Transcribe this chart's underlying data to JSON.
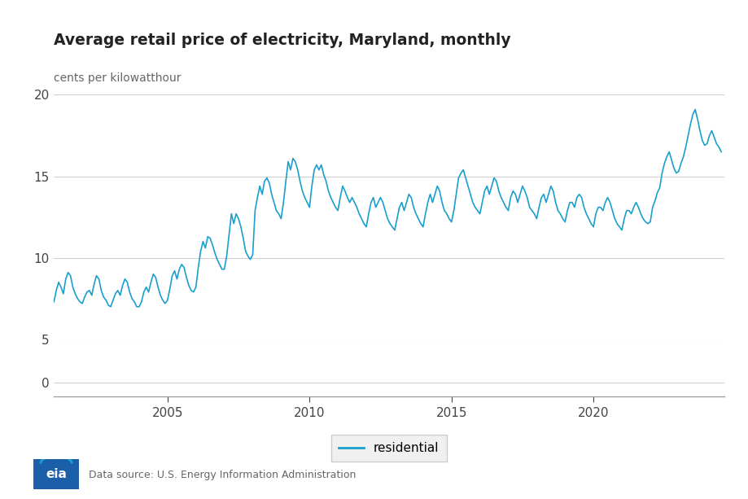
{
  "title": "Average retail price of electricity, Maryland, monthly",
  "ylabel": "cents per kilowatthour",
  "line_color": "#1a9fcd",
  "legend_label": "residential",
  "background_color": "#ffffff",
  "plot_bg_color": "#ffffff",
  "ylim": [
    0,
    20
  ],
  "yticks": [
    0,
    5,
    10,
    15,
    20
  ],
  "x_tick_years": [
    2005,
    2010,
    2015,
    2020
  ],
  "source_text": "Data source: U.S. Energy Information Administration",
  "start_year": 2001,
  "start_month": 1,
  "values": [
    7.3,
    8.0,
    8.5,
    8.2,
    7.8,
    8.7,
    9.1,
    8.9,
    8.2,
    7.8,
    7.5,
    7.3,
    7.2,
    7.6,
    7.9,
    8.0,
    7.7,
    8.4,
    8.9,
    8.7,
    8.0,
    7.6,
    7.4,
    7.1,
    7.0,
    7.4,
    7.8,
    8.0,
    7.7,
    8.3,
    8.7,
    8.5,
    7.9,
    7.5,
    7.3,
    7.0,
    7.0,
    7.3,
    7.9,
    8.2,
    7.9,
    8.5,
    9.0,
    8.8,
    8.2,
    7.7,
    7.4,
    7.2,
    7.4,
    8.1,
    8.9,
    9.2,
    8.7,
    9.3,
    9.6,
    9.4,
    8.8,
    8.3,
    8.0,
    7.9,
    8.2,
    9.4,
    10.4,
    11.0,
    10.6,
    11.3,
    11.2,
    10.8,
    10.3,
    9.9,
    9.6,
    9.3,
    9.3,
    10.1,
    11.4,
    12.7,
    12.1,
    12.7,
    12.4,
    11.9,
    11.2,
    10.4,
    10.1,
    9.9,
    10.2,
    12.9,
    13.7,
    14.4,
    13.9,
    14.7,
    14.9,
    14.6,
    13.9,
    13.4,
    12.9,
    12.7,
    12.4,
    13.4,
    14.7,
    15.9,
    15.4,
    16.1,
    15.9,
    15.4,
    14.7,
    14.1,
    13.7,
    13.4,
    13.1,
    14.4,
    15.4,
    15.7,
    15.4,
    15.7,
    15.1,
    14.7,
    14.1,
    13.7,
    13.4,
    13.1,
    12.9,
    13.7,
    14.4,
    14.1,
    13.7,
    13.4,
    13.7,
    13.4,
    13.1,
    12.7,
    12.4,
    12.1,
    11.9,
    12.7,
    13.4,
    13.7,
    13.1,
    13.4,
    13.7,
    13.4,
    12.9,
    12.4,
    12.1,
    11.9,
    11.7,
    12.4,
    13.1,
    13.4,
    12.9,
    13.4,
    13.9,
    13.7,
    13.1,
    12.7,
    12.4,
    12.1,
    11.9,
    12.7,
    13.4,
    13.9,
    13.4,
    13.9,
    14.4,
    14.1,
    13.4,
    12.9,
    12.7,
    12.4,
    12.2,
    12.9,
    13.9,
    14.9,
    15.2,
    15.4,
    14.9,
    14.4,
    13.9,
    13.4,
    13.1,
    12.9,
    12.7,
    13.4,
    14.1,
    14.4,
    13.9,
    14.4,
    14.9,
    14.7,
    14.1,
    13.7,
    13.4,
    13.1,
    12.9,
    13.7,
    14.1,
    13.9,
    13.4,
    13.9,
    14.4,
    14.1,
    13.7,
    13.1,
    12.9,
    12.7,
    12.4,
    13.1,
    13.7,
    13.9,
    13.4,
    13.9,
    14.4,
    14.1,
    13.4,
    12.9,
    12.7,
    12.4,
    12.2,
    12.9,
    13.4,
    13.4,
    13.1,
    13.7,
    13.9,
    13.7,
    13.1,
    12.7,
    12.4,
    12.1,
    11.9,
    12.7,
    13.1,
    13.1,
    12.9,
    13.4,
    13.7,
    13.4,
    12.9,
    12.4,
    12.1,
    11.9,
    11.7,
    12.4,
    12.9,
    12.9,
    12.7,
    13.1,
    13.4,
    13.1,
    12.7,
    12.4,
    12.2,
    12.1,
    12.2,
    13.1,
    13.5,
    14.0,
    14.3,
    15.2,
    15.8,
    16.2,
    16.5,
    16.0,
    15.5,
    15.2,
    15.3,
    15.8,
    16.2,
    16.8,
    17.5,
    18.2,
    18.8,
    19.1,
    18.5,
    17.8,
    17.2,
    16.9,
    17.0,
    17.5,
    17.8,
    17.4,
    17.0,
    16.8,
    16.5
  ]
}
